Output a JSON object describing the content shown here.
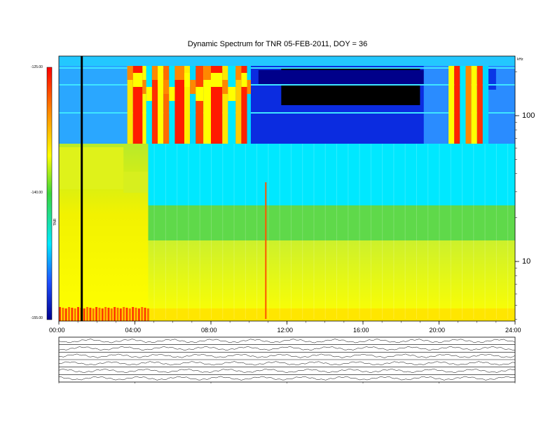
{
  "header": {
    "title": "Dynamic Spectrum for TNR 05-FEB-2011, DOY = 36",
    "meta_left": [
      "",
      "",
      ""
    ],
    "meta_right": [
      "",
      "",
      ""
    ],
    "meta_center": ""
  },
  "colorbar": {
    "ticks": [
      "-125.00",
      "-140.00",
      "-155.00"
    ],
    "label": "TNR"
  },
  "right_axis": {
    "ticks": [
      "100",
      "10"
    ],
    "unit": "kHz"
  },
  "bottom_panels": {
    "labels": [
      "",
      "",
      "",
      "",
      "",
      ""
    ],
    "footer": ""
  },
  "chart_data": {
    "type": "heatmap",
    "title": "Dynamic Spectrum for TNR 05-FEB-2011, DOY = 36",
    "x": [
      "00:00",
      "04:00",
      "08:00",
      "12:00",
      "16:00",
      "20:00",
      "24:00"
    ],
    "xlim": [
      "00:00",
      "24:00"
    ],
    "y_scale": "log",
    "y_ticks": [
      100,
      10
    ],
    "colorbar_range": [
      -155.0,
      -125.0
    ],
    "colorbar_ticks": [
      -125.0,
      -140.0,
      -155.0
    ],
    "colors": {
      "low": "#0000a0",
      "mid_low": "#00e8ff",
      "mid": "#3ad63a",
      "mid_high": "#ffff00",
      "high": "#ff0000"
    }
  }
}
